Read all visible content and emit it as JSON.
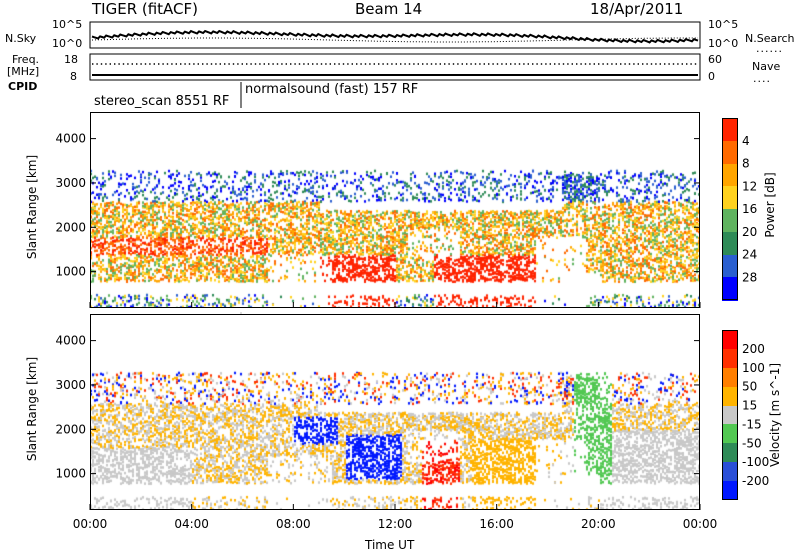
{
  "header": {
    "title": "TIGER (fitACF)",
    "beam": "Beam 14",
    "date": "18/Apr/2011"
  },
  "panel_labels": {
    "nsky": "N.Sky",
    "nsearch": "N.Search",
    "freq": "Freq.",
    "freq_unit": "[MHz]",
    "nave": "Nave",
    "cpid": "CPID"
  },
  "small_axes": {
    "nsky_left_top": "10^5",
    "nsky_left_bottom": "10^0",
    "nsky_right_top": "10^5",
    "nsky_right_bottom": "10^0",
    "freq_left_top": "18",
    "freq_left_bottom": "8",
    "nave_right_top": "60",
    "nave_right_bottom": "0"
  },
  "cpid": {
    "segments": [
      {
        "label": "stereo_scan 8551 RF",
        "start": "00:00",
        "end": "06:00"
      },
      {
        "label": "normalsound (fast) 157 RF",
        "start": "06:00",
        "end": "24:00"
      }
    ]
  },
  "axes": {
    "ylabel": "Slant Range [km]",
    "xlabel": "Time UT",
    "y_ticks": [
      "1000",
      "2000",
      "3000",
      "4000"
    ],
    "x_ticks": [
      "00:00",
      "04:00",
      "08:00",
      "12:00",
      "16:00",
      "20:00",
      "00:00"
    ]
  },
  "chart_data": [
    {
      "type": "heatmap",
      "name": "Power",
      "x_range_hours": [
        0,
        24
      ],
      "y_range_km": [
        180,
        4600
      ],
      "colorbar": {
        "label": "Power [dB]",
        "ticks": [
          "4",
          "8",
          "12",
          "16",
          "20",
          "24",
          "28"
        ],
        "colors": [
          "#0000ff",
          "#2a5fd0",
          "#2e8b57",
          "#5fb35f",
          "#ffd21f",
          "#ffa500",
          "#ff6a00",
          "#ff2400"
        ]
      }
    },
    {
      "type": "heatmap",
      "name": "Velocity",
      "x_range_hours": [
        0,
        24
      ],
      "y_range_km": [
        180,
        4600
      ],
      "colorbar": {
        "label": "Velocity [m s^-1]",
        "ticks": [
          "200",
          "100",
          "50",
          "15",
          "-15",
          "-50",
          "-100",
          "-200"
        ],
        "colors": [
          "#0018ff",
          "#2a4fd8",
          "#2e8b57",
          "#52c852",
          "#c8c8c8",
          "#ffb400",
          "#ff7f00",
          "#ff3000",
          "#ff0000"
        ]
      }
    }
  ]
}
